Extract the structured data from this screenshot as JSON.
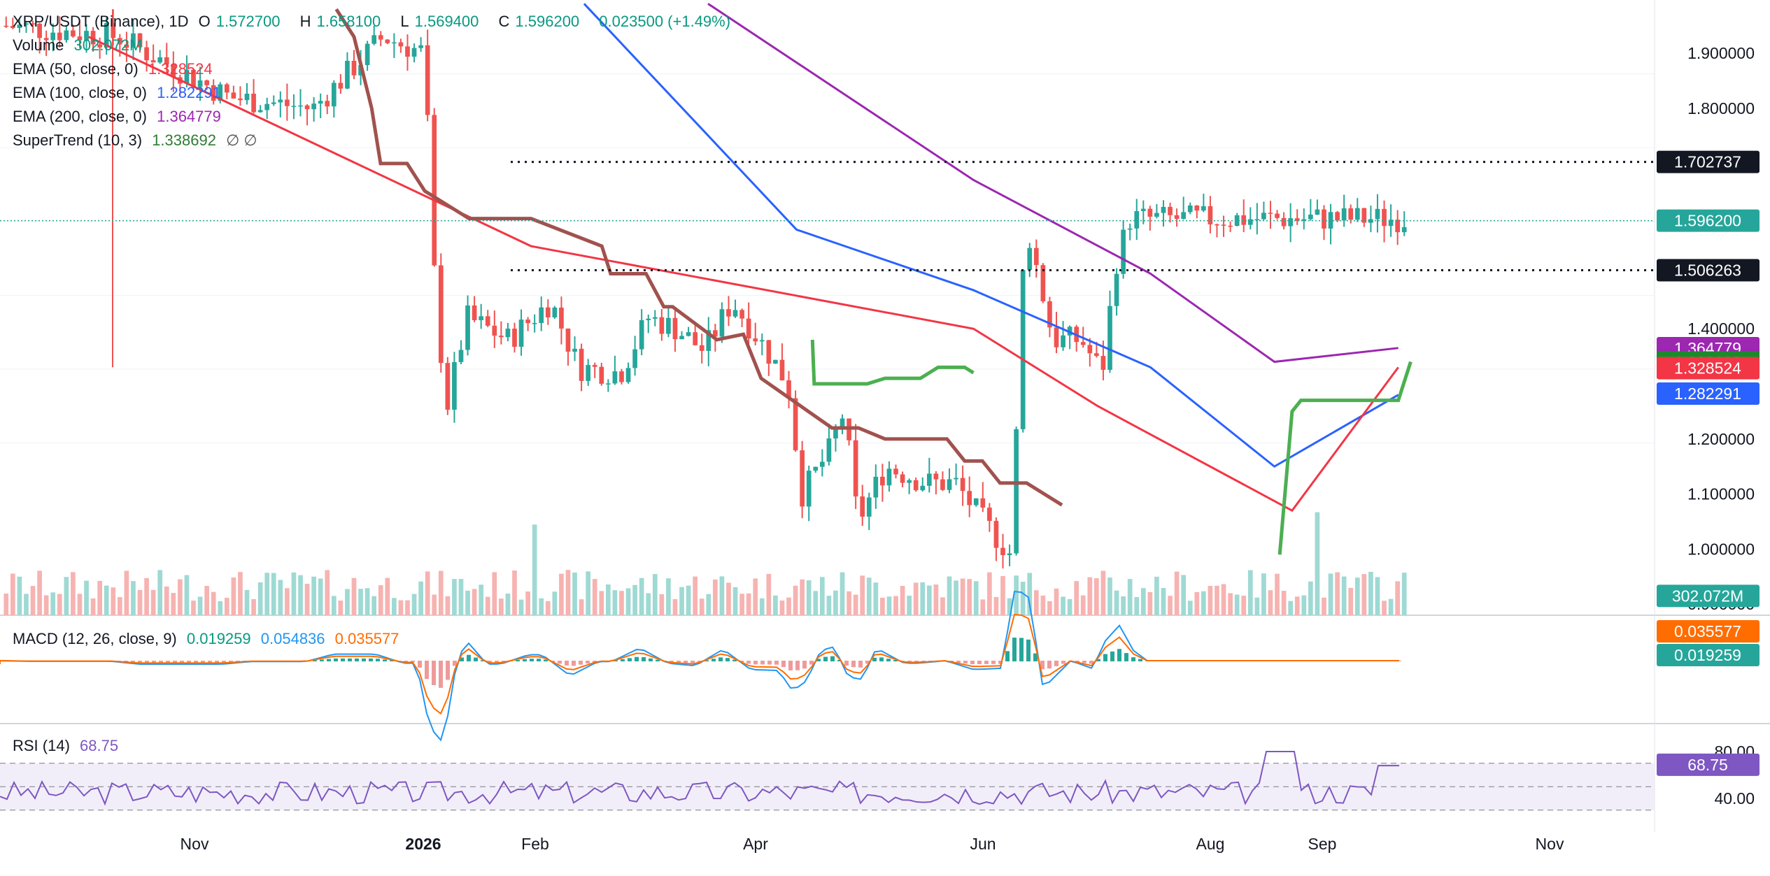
{
  "legend": {
    "symbol": "XRP/USDT (Binance), 1D",
    "open_label": "O",
    "open": "1.572700",
    "high_label": "H",
    "high": "1.658100",
    "low_label": "L",
    "low": "1.569400",
    "close_label": "C",
    "close": "1.596200",
    "change": "0.023500 (+1.49%)",
    "volume_label": "Volume",
    "volume": "302.072M",
    "ema50_label": "EMA (50, close, 0)",
    "ema50": "1.328524",
    "ema100_label": "EMA (100, close, 0)",
    "ema100": "1.282291",
    "ema200_label": "EMA (200, close, 0)",
    "ema200": "1.364779",
    "st_label": "SuperTrend (10, 3)",
    "st": "1.338692",
    "st_flags": "∅ ∅",
    "macd_label": "MACD (12, 26, close, 9)",
    "macd_hist": "0.019259",
    "macd_line": "0.054836",
    "macd_signal": "0.035577",
    "rsi_label": "RSI (14)",
    "rsi": "68.75"
  },
  "colors": {
    "up": "#26a69a",
    "down": "#ef5350",
    "ema50": "#f23645",
    "ema100": "#2962ff",
    "ema200": "#9c27b0",
    "st_up": "#4caf50",
    "st_down": "#a1524e",
    "macd": "#2196f3",
    "signal": "#ff6d00",
    "rsi": "#7e57c2",
    "last": "#26a69a"
  },
  "chart_data": {
    "type": "candlestick",
    "interval": "1D",
    "price_axis": {
      "ticks": [
        "1.900000",
        "1.800000",
        "1.400000",
        "1.200000",
        "1.100000",
        "1.000000",
        "0.900000"
      ],
      "ylim": [
        0.88,
        1.98
      ]
    },
    "time_axis": [
      "Nov",
      "2026",
      "Feb",
      "Apr",
      "Jun",
      "Aug",
      "Sep",
      "Nov"
    ],
    "horizontal_lines": [
      1.702737,
      1.506263
    ],
    "price_tags": [
      {
        "value": "1.702737",
        "kind": "line"
      },
      {
        "value": "1.596200",
        "kind": "last"
      },
      {
        "value": "1.506263",
        "kind": "line"
      },
      {
        "value": "1.364779",
        "kind": "ema200"
      },
      {
        "value": "1.338692",
        "kind": "supertrend"
      },
      {
        "value": "1.328524",
        "kind": "ema50"
      },
      {
        "value": "1.282291",
        "kind": "ema100"
      },
      {
        "value": "302.072M",
        "kind": "volume"
      }
    ],
    "macd_tags": [
      "0.035577",
      "0.019259"
    ],
    "rsi_axis": {
      "ticks": [
        "80.00",
        "40.00"
      ],
      "bands": [
        70,
        50,
        30
      ]
    },
    "rsi_tag": "68.75",
    "ema50_path": [
      [
        0.05,
        1.93
      ],
      [
        0.3,
        1.55
      ],
      [
        0.45,
        1.46
      ],
      [
        0.55,
        1.4
      ],
      [
        0.62,
        1.26
      ],
      [
        0.73,
        1.07
      ],
      [
        0.79,
        1.33
      ]
    ],
    "ema100_path": [
      [
        0.33,
        1.99
      ],
      [
        0.45,
        1.58
      ],
      [
        0.55,
        1.47
      ],
      [
        0.65,
        1.33
      ],
      [
        0.72,
        1.15
      ],
      [
        0.79,
        1.28
      ]
    ],
    "ema200_path": [
      [
        0.4,
        1.99
      ],
      [
        0.55,
        1.67
      ],
      [
        0.65,
        1.5
      ],
      [
        0.72,
        1.34
      ],
      [
        0.79,
        1.365
      ]
    ]
  }
}
